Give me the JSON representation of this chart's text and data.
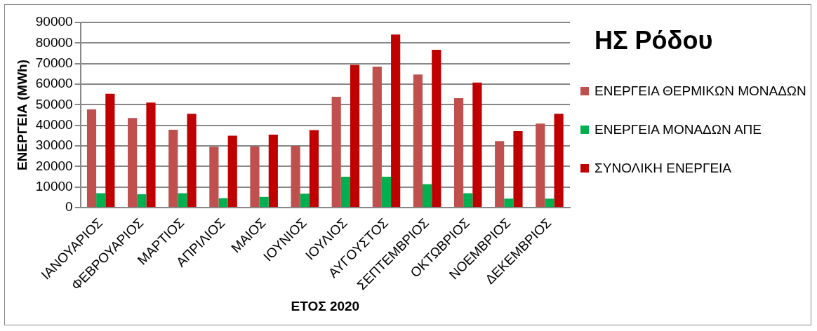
{
  "chart_data": {
    "type": "bar",
    "title": "ΗΣ Ρόδου",
    "xlabel": "ΕΤΟΣ 2020",
    "ylabel": "ΕΝΕΡΓΕΙΑ (MWh)",
    "categories": [
      "ΙΑΝΟΥΑΡΙΟΣ",
      "ΦΕΒΡΟΥΑΡΙΟΣ",
      "ΜΑΡΤΙΟΣ",
      "ΑΠΡΙΛΙΟΣ",
      "ΜΑΙΟΣ",
      "ΙΟΥΝΙΟΣ",
      "ΙΟΥΛΙΟΣ",
      "ΑΥΓΟΥΣΤΟΣ",
      "ΣΕΠΤΕΜΒΡΙΟΣ",
      "ΟΚΤΩΒΡΙΟΣ",
      "ΝΟΕΜΒΡΙΟΣ",
      "ΔΕΚΕΜΒΡΙΟΣ"
    ],
    "series": [
      {
        "name": "ΕΝΕΡΓΕΙΑ ΘΕΡΜΙΚΩΝ ΜΟΝΑΔΩΝ",
        "color": "#c0504d",
        "values": [
          47700,
          43600,
          37900,
          29600,
          29800,
          30000,
          53900,
          68500,
          64700,
          53200,
          32300,
          40800
        ]
      },
      {
        "name": "ΕΝΕΡΓΕΙΑ ΜΟΝΑΔΩΝ ΑΠΕ",
        "color": "#00b050",
        "values": [
          7000,
          6500,
          7000,
          4600,
          5200,
          6800,
          15000,
          15000,
          11400,
          7000,
          4400,
          4400
        ]
      },
      {
        "name": "ΣΥΝΟΛΙΚΗ ΕΝΕΡΓΕΙΑ",
        "color": "#c00000",
        "values": [
          55300,
          51100,
          45600,
          35000,
          35500,
          37700,
          69400,
          84100,
          76700,
          60800,
          37200,
          45600
        ]
      }
    ],
    "ylim": [
      0,
      90000
    ],
    "yticks": [
      0,
      10000,
      20000,
      30000,
      40000,
      50000,
      60000,
      70000,
      80000,
      90000
    ],
    "grid": "y",
    "legend": "right"
  }
}
